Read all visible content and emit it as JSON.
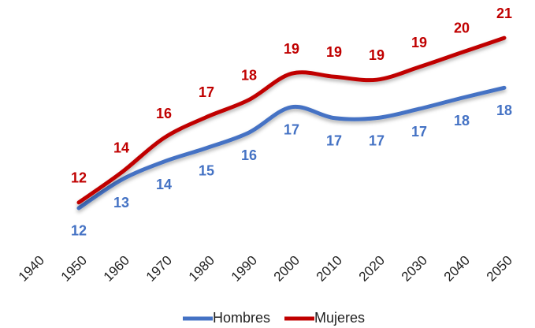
{
  "chart_data": {
    "type": "line",
    "x": [
      1950,
      1960,
      1970,
      1980,
      1990,
      2000,
      2010,
      2020,
      2030,
      2040,
      2050
    ],
    "xlim": [
      1940,
      2050
    ],
    "xticks": [
      1940,
      1950,
      1960,
      1970,
      1980,
      1990,
      2000,
      2010,
      2020,
      2030,
      2040,
      2050
    ],
    "ylim": [
      10,
      22
    ],
    "series": [
      {
        "name": "Hombres",
        "color": "#4472c4",
        "values": [
          11.65,
          13.2,
          14.2,
          14.95,
          15.8,
          17.2,
          16.6,
          16.6,
          17.1,
          17.7,
          18.26
        ],
        "value_labels": [
          "12",
          "13",
          "14",
          "15",
          "16",
          "17",
          "17",
          "17",
          "17",
          "18",
          "18"
        ]
      },
      {
        "name": "Mujeres",
        "color": "#c00000",
        "values": [
          11.96,
          13.6,
          15.5,
          16.65,
          17.6,
          19.04,
          18.87,
          18.7,
          19.4,
          20.2,
          21
        ],
        "value_labels": [
          "12",
          "14",
          "16",
          "17",
          "18",
          "19",
          "19",
          "19",
          "19",
          "20",
          "21"
        ]
      }
    ],
    "legend": "bottom"
  }
}
